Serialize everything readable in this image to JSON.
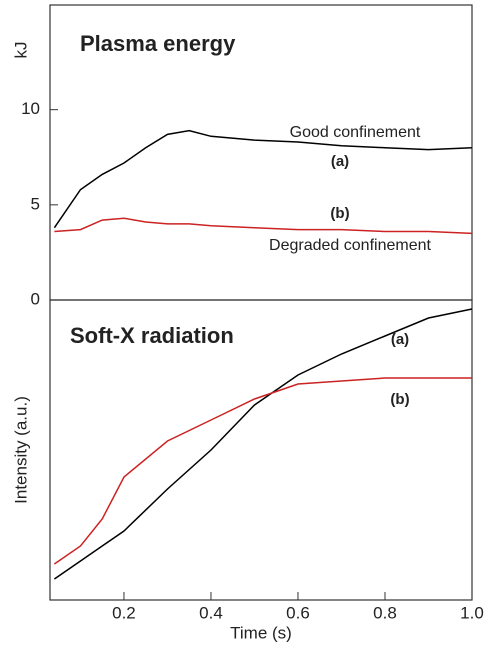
{
  "chart_data": [
    {
      "type": "line",
      "title": "Plasma energy",
      "ylabel": "kJ",
      "x": [
        0.04,
        0.1,
        0.15,
        0.2,
        0.25,
        0.3,
        0.35,
        0.4,
        0.5,
        0.6,
        0.7,
        0.8,
        0.9,
        1.0
      ],
      "series": [
        {
          "color": "#000000",
          "values": [
            3.8,
            5.8,
            6.6,
            7.2,
            8.0,
            8.7,
            8.9,
            8.6,
            8.4,
            8.3,
            8.1,
            8.0,
            7.9,
            8.0
          ]
        },
        {
          "color": "#cc2222",
          "values": [
            3.6,
            3.7,
            4.2,
            4.3,
            4.1,
            4.0,
            4.0,
            3.9,
            3.8,
            3.7,
            3.7,
            3.6,
            3.6,
            3.5
          ]
        }
      ],
      "annotations": [
        "Good confinement",
        "(a)",
        "(b)",
        "Degraded confinement"
      ],
      "xlim": [
        0.03,
        1.0
      ],
      "ylim": [
        0,
        15.5
      ],
      "yticks": [
        0,
        5,
        10
      ]
    },
    {
      "type": "line",
      "title": "Soft-X radiation",
      "ylabel": "Intensity (a.u.)",
      "xlabel": "Time (s)",
      "x": [
        0.04,
        0.1,
        0.15,
        0.2,
        0.3,
        0.4,
        0.5,
        0.6,
        0.7,
        0.8,
        0.9,
        1.0
      ],
      "series": [
        {
          "color": "#000000",
          "values": [
            0.07,
            0.13,
            0.18,
            0.23,
            0.37,
            0.5,
            0.65,
            0.75,
            0.82,
            0.88,
            0.94,
            0.97
          ]
        },
        {
          "color": "#cc2222",
          "values": [
            0.12,
            0.18,
            0.27,
            0.41,
            0.53,
            0.6,
            0.67,
            0.72,
            0.73,
            0.74,
            0.74,
            0.74
          ]
        }
      ],
      "annotations": [
        "(a)",
        "(b)"
      ],
      "xlim": [
        0.03,
        1.0
      ],
      "ylim": [
        0,
        1
      ],
      "xticks": [
        0.2,
        0.4,
        0.6,
        0.8,
        {
          "value": 1,
          "label": "1.0"
        }
      ]
    }
  ]
}
